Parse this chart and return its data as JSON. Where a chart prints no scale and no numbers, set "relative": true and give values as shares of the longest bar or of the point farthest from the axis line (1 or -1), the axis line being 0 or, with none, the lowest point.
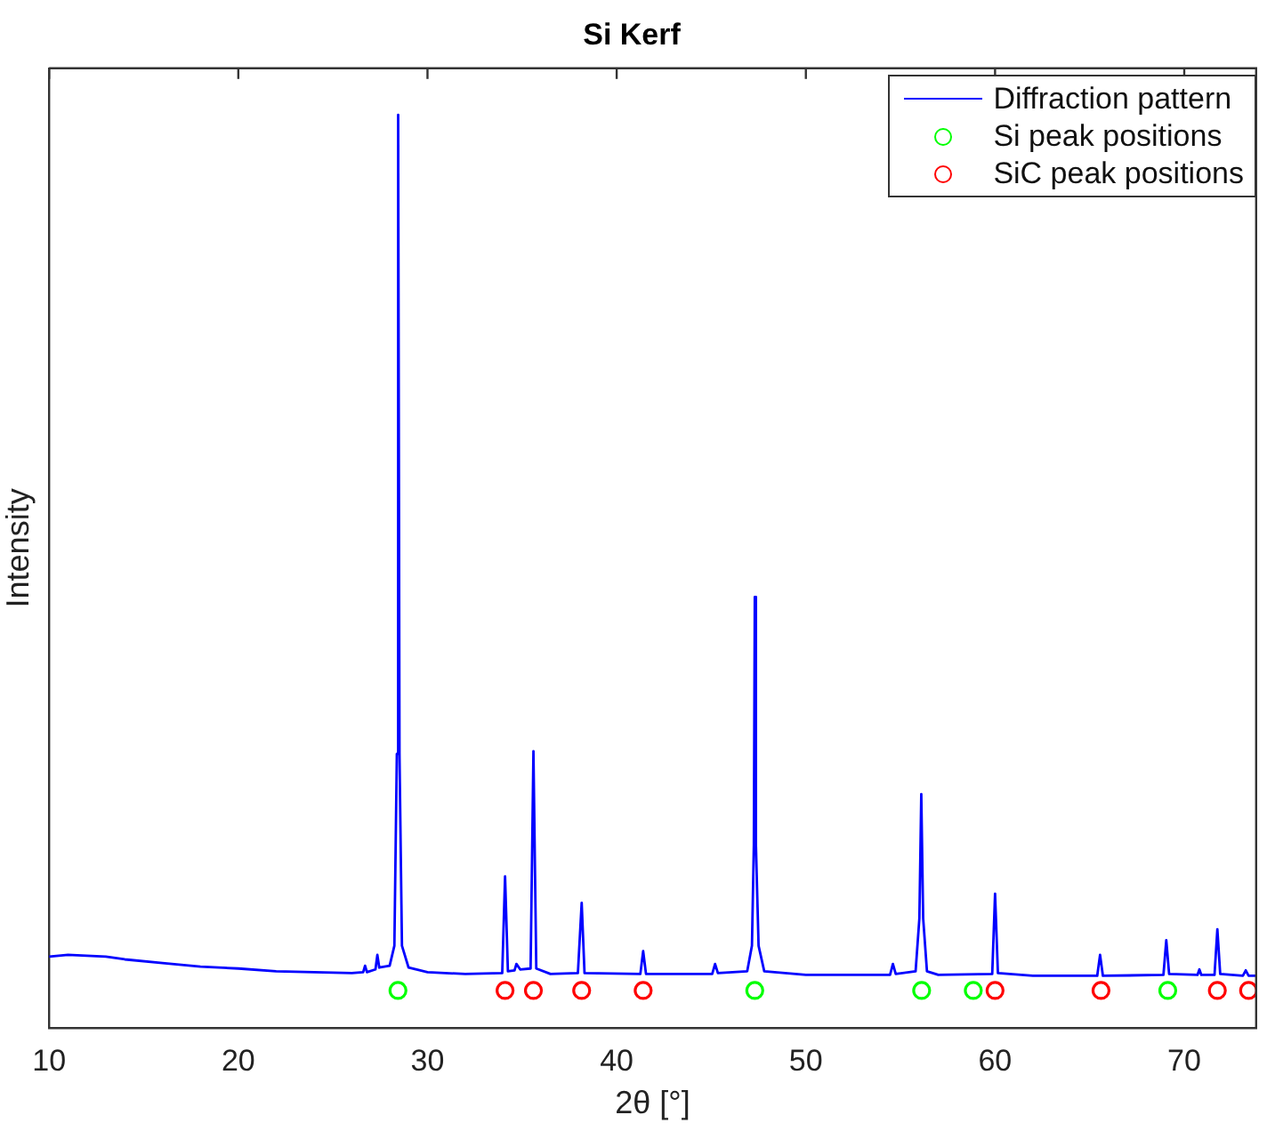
{
  "chart_data": {
    "type": "line",
    "title": "Si Kerf",
    "xlabel": "2θ [°]",
    "ylabel": "Intensity",
    "relative": true,
    "xlim": [
      10,
      73.8
    ],
    "xticks": [
      10,
      20,
      30,
      40,
      50,
      60,
      70
    ],
    "tick_labels": "x",
    "grid": false,
    "legend": "top right",
    "series": [
      {
        "name": "Diffraction pattern",
        "color": "#0000ff",
        "marker": "none",
        "line_style": "solid",
        "x": [
          10,
          11,
          12,
          13,
          14,
          16,
          18,
          20,
          22,
          24,
          26,
          26.6,
          26.7,
          26.8,
          27.25,
          27.35,
          27.45,
          28.0,
          28.25,
          28.38,
          28.45,
          28.52,
          28.65,
          29.0,
          30,
          32,
          33.95,
          34.1,
          34.25,
          34.6,
          34.7,
          34.9,
          35.45,
          35.6,
          35.75,
          36.5,
          37.95,
          38.15,
          38.3,
          41.25,
          41.4,
          41.55,
          45.05,
          45.2,
          45.35,
          46.9,
          47.15,
          47.25,
          47.3,
          47.36,
          47.5,
          47.8,
          50,
          54.45,
          54.6,
          54.75,
          55.8,
          56.0,
          56.1,
          56.2,
          56.4,
          57,
          59.85,
          60.0,
          60.15,
          62,
          65.4,
          65.55,
          65.7,
          68.9,
          69.05,
          69.2,
          70.7,
          70.8,
          70.9,
          71.6,
          71.75,
          71.9,
          73.1,
          73.25,
          73.4,
          73.8
        ],
        "values": [
          0.078,
          0.08,
          0.079,
          0.078,
          0.075,
          0.071,
          0.067,
          0.065,
          0.062,
          0.061,
          0.06,
          0.061,
          0.068,
          0.061,
          0.064,
          0.08,
          0.066,
          0.068,
          0.09,
          0.3,
          1,
          0.3,
          0.09,
          0.066,
          0.061,
          0.059,
          0.06,
          0.166,
          0.062,
          0.063,
          0.07,
          0.064,
          0.065,
          0.303,
          0.065,
          0.059,
          0.06,
          0.137,
          0.06,
          0.059,
          0.084,
          0.059,
          0.059,
          0.07,
          0.06,
          0.062,
          0.09,
          0.2,
          0.472,
          0.2,
          0.09,
          0.062,
          0.058,
          0.058,
          0.07,
          0.059,
          0.062,
          0.12,
          0.256,
          0.12,
          0.062,
          0.058,
          0.059,
          0.147,
          0.06,
          0.057,
          0.057,
          0.08,
          0.057,
          0.058,
          0.096,
          0.059,
          0.058,
          0.064,
          0.058,
          0.058,
          0.108,
          0.059,
          0.057,
          0.063,
          0.057,
          0.057
        ]
      },
      {
        "name": "Si peak positions",
        "type": "scatter",
        "color": "#00ff00",
        "marker": "circle",
        "x": [
          28.44,
          47.3,
          56.12,
          58.85,
          69.13
        ],
        "values": [
          0.041,
          0.041,
          0.041,
          0.041,
          0.041
        ]
      },
      {
        "name": "SiC peak positions",
        "type": "scatter",
        "color": "#ff0000",
        "marker": "circle",
        "x": [
          34.1,
          35.6,
          38.15,
          41.4,
          60.0,
          65.6,
          71.75,
          73.4
        ],
        "values": [
          0.041,
          0.041,
          0.041,
          0.041,
          0.041,
          0.041,
          0.041,
          0.041
        ]
      }
    ]
  }
}
